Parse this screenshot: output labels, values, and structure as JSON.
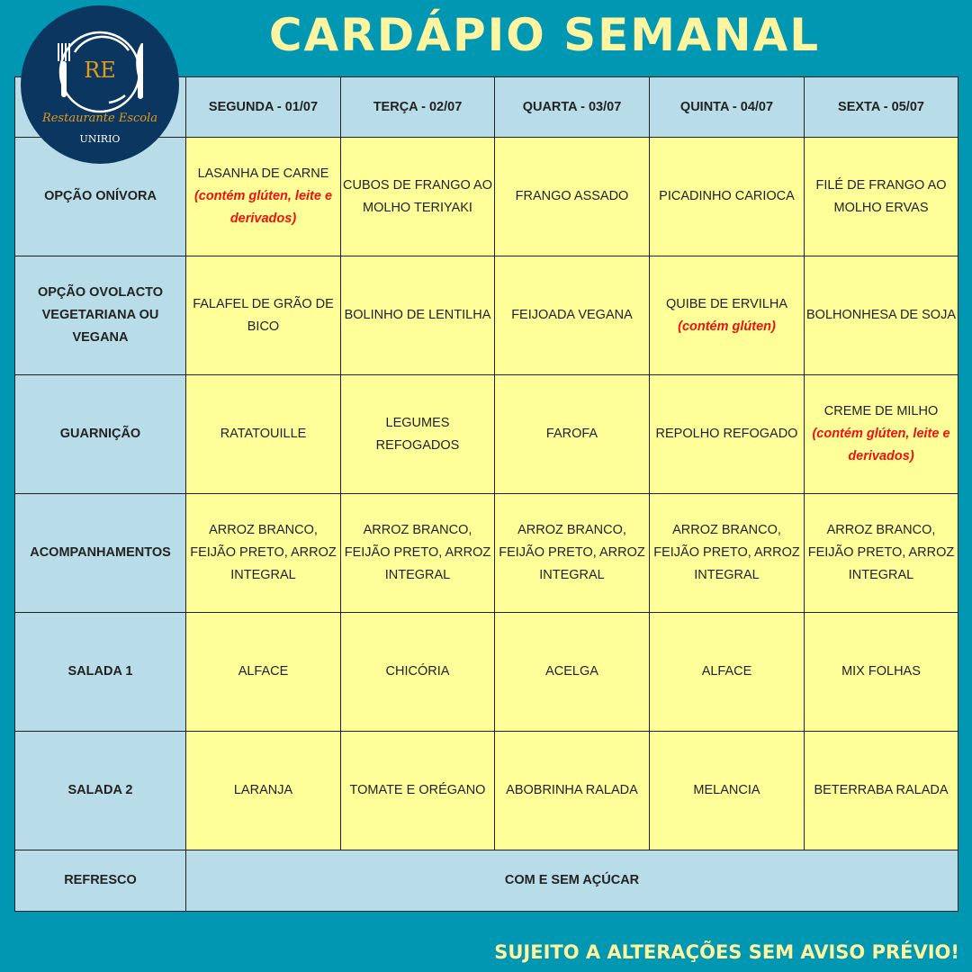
{
  "title": "CARDÁPIO SEMANAL",
  "logo": {
    "initials": "RE",
    "name": "Restaurante Escola",
    "institution": "UNIRIO"
  },
  "days": [
    "SEGUNDA - 01/07",
    "TERÇA - 02/07",
    "QUARTA - 03/07",
    "QUINTA - 04/07",
    "SEXTA - 05/07"
  ],
  "rows": [
    {
      "label": "OPÇÃO ONÍVORA",
      "cells": [
        {
          "text": "LASANHA DE CARNE",
          "warn": "(contém glúten, leite e derivados)"
        },
        {
          "text": "CUBOS DE FRANGO AO MOLHO TERIYAKI"
        },
        {
          "text": "FRANGO ASSADO"
        },
        {
          "text": "PICADINHO CARIOCA"
        },
        {
          "text": "FILÉ DE FRANGO AO MOLHO ERVAS"
        }
      ]
    },
    {
      "label": "OPÇÃO OVOLACTO VEGETARIANA OU VEGANA",
      "cells": [
        {
          "text": "FALAFEL DE GRÃO DE BICO"
        },
        {
          "text": "BOLINHO DE LENTILHA"
        },
        {
          "text": "FEIJOADA VEGANA"
        },
        {
          "text": "QUIBE DE ERVILHA",
          "warn": "(contém glúten)"
        },
        {
          "text": "BOLHONHESA DE SOJA"
        }
      ]
    },
    {
      "label": "GUARNIÇÃO",
      "cells": [
        {
          "text": "RATATOUILLE"
        },
        {
          "text": "LEGUMES REFOGADOS"
        },
        {
          "text": "FAROFA"
        },
        {
          "text": "REPOLHO REFOGADO"
        },
        {
          "text": "CREME DE MILHO",
          "warn": "(contém glúten, leite e derivados)"
        }
      ]
    },
    {
      "label": "ACOMPANHAMENTOS",
      "cells": [
        {
          "text": "ARROZ BRANCO, FEIJÃO PRETO, ARROZ INTEGRAL"
        },
        {
          "text": "ARROZ BRANCO, FEIJÃO PRETO, ARROZ INTEGRAL"
        },
        {
          "text": "ARROZ BRANCO, FEIJÃO PRETO, ARROZ INTEGRAL"
        },
        {
          "text": "ARROZ BRANCO, FEIJÃO PRETO, ARROZ INTEGRAL"
        },
        {
          "text": "ARROZ BRANCO, FEIJÃO PRETO, ARROZ INTEGRAL"
        }
      ]
    },
    {
      "label": "SALADA 1",
      "cells": [
        {
          "text": "ALFACE"
        },
        {
          "text": "CHICÓRIA"
        },
        {
          "text": "ACELGA"
        },
        {
          "text": "ALFACE"
        },
        {
          "text": "MIX FOLHAS"
        }
      ]
    },
    {
      "label": "SALADA 2",
      "cells": [
        {
          "text": "LARANJA"
        },
        {
          "text": "TOMATE E ORÉGANO"
        },
        {
          "text": "ABOBRINHA RALADA"
        },
        {
          "text": "MELANCIA"
        },
        {
          "text": "BETERRABA RALADA"
        }
      ]
    }
  ],
  "refresco": {
    "label": "REFRESCO",
    "value": "COM E SEM AÇÚCAR"
  },
  "footer": "SUJEITO A ALTERAÇÕES SEM AVISO PRÉVIO!",
  "colors": {
    "background": "#0097b2",
    "title": "#fff5a0",
    "cell": "#ffff99",
    "header": "#b9dde8",
    "warning": "#f01010",
    "logo": "#0a3660"
  }
}
